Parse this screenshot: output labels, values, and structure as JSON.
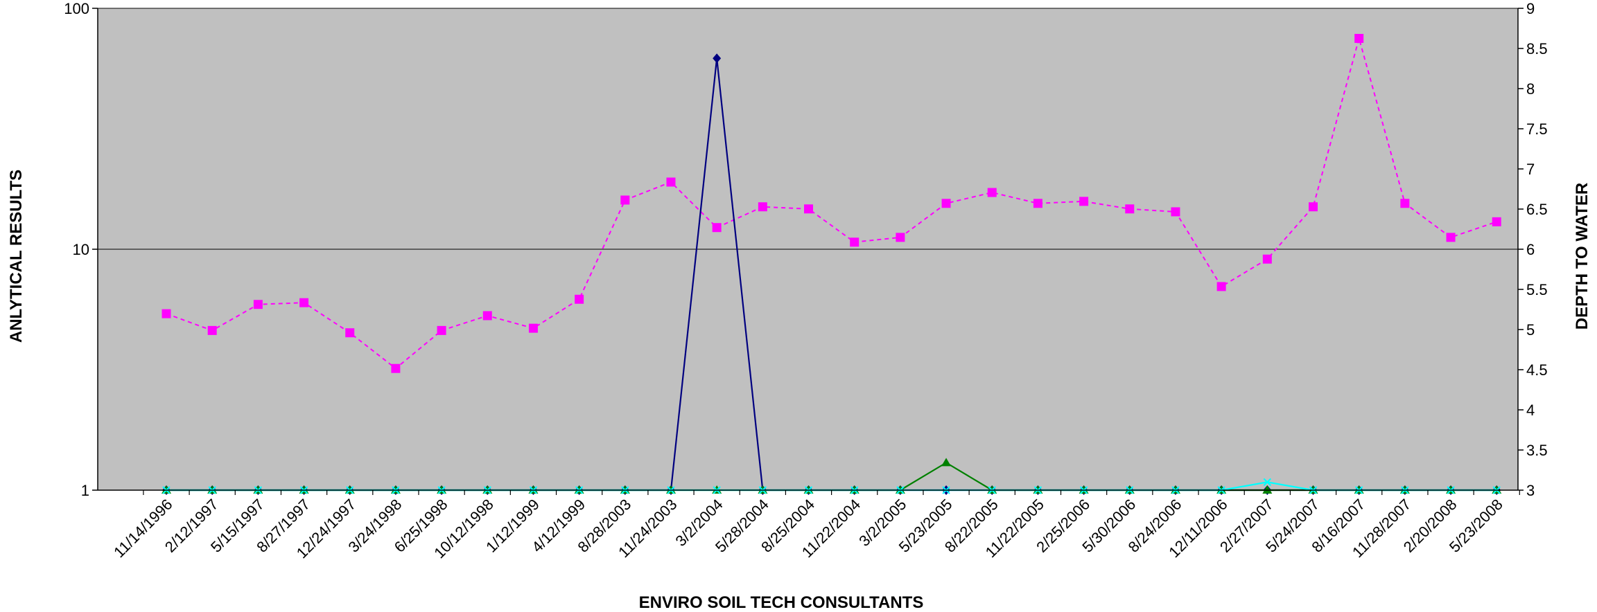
{
  "chart_data": {
    "type": "line",
    "title": "",
    "xlabel": "ENVIRO SOIL TECH CONSULTANTS",
    "ylabel": "ANLYTICAL RESULTS",
    "y2label": "DEPTH TO WATER",
    "yscale": "log",
    "ylim": [
      1,
      100
    ],
    "y_ticks": [
      "1",
      "10",
      "100"
    ],
    "y2lim": [
      3,
      9
    ],
    "y2_ticks": [
      "3",
      "3.5",
      "4",
      "4.5",
      "5",
      "5.5",
      "6",
      "6.5",
      "7",
      "7.5",
      "8",
      "8.5",
      "9"
    ],
    "grid": "horizontal major gridlines",
    "plot_background": "#c0c0c0",
    "categories": [
      "11/14/1996",
      "2/12/1997",
      "5/15/1997",
      "8/27/1997",
      "12/24/1997",
      "3/24/1998",
      "6/25/1998",
      "10/12/1998",
      "1/12/1999",
      "4/12/1999",
      "8/28/2003",
      "11/24/2003",
      "3/2/2004",
      "5/28/2004",
      "8/25/2004",
      "11/22/2004",
      "3/2/2005",
      "5/23/2005",
      "8/22/2005",
      "11/22/2005",
      "2/25/2006",
      "5/30/2006",
      "8/24/2006",
      "12/11/2006",
      "2/27/2007",
      "5/24/2007",
      "8/16/2007",
      "11/28/2007",
      "2/20/2008",
      "5/23/2008"
    ],
    "series": [
      {
        "axis": "left",
        "color": "#000080",
        "marker": "diamond",
        "line": "solid",
        "values": [
          1,
          1,
          1,
          1,
          1,
          1,
          1,
          1,
          1,
          1,
          1,
          1,
          62,
          1,
          1,
          1,
          1,
          1,
          1,
          1,
          1,
          1,
          1,
          1,
          1,
          1,
          1,
          1,
          1,
          1
        ]
      },
      {
        "axis": "left",
        "color": "#ff00ff",
        "marker": "square",
        "line": "dashed",
        "values": [
          5.4,
          4.6,
          5.9,
          6.0,
          4.5,
          3.2,
          4.6,
          5.3,
          4.7,
          6.2,
          16,
          19,
          12.3,
          15,
          14.7,
          10.7,
          11.2,
          15.5,
          17.2,
          15.5,
          15.8,
          14.7,
          14.3,
          7.0,
          9.1,
          15,
          75,
          15.5,
          11.2,
          13
        ]
      },
      {
        "axis": "left",
        "color": "#008000",
        "marker": "triangle",
        "line": "solid",
        "values": [
          1,
          1,
          1,
          1,
          1,
          1,
          1,
          1,
          1,
          1,
          1,
          1,
          1,
          1,
          1,
          1,
          1,
          1.3,
          1,
          1,
          1,
          1,
          1,
          1,
          1,
          1,
          1,
          1,
          1,
          1
        ]
      },
      {
        "axis": "left",
        "color": "#00ffff",
        "marker": "x",
        "line": "solid",
        "values": [
          1,
          1,
          1,
          1,
          1,
          1,
          1,
          1,
          1,
          1,
          1,
          1,
          1,
          1,
          1,
          1,
          1,
          1,
          1,
          1,
          1,
          1,
          1,
          1,
          1.08,
          1,
          1,
          1,
          1,
          1
        ]
      }
    ]
  }
}
